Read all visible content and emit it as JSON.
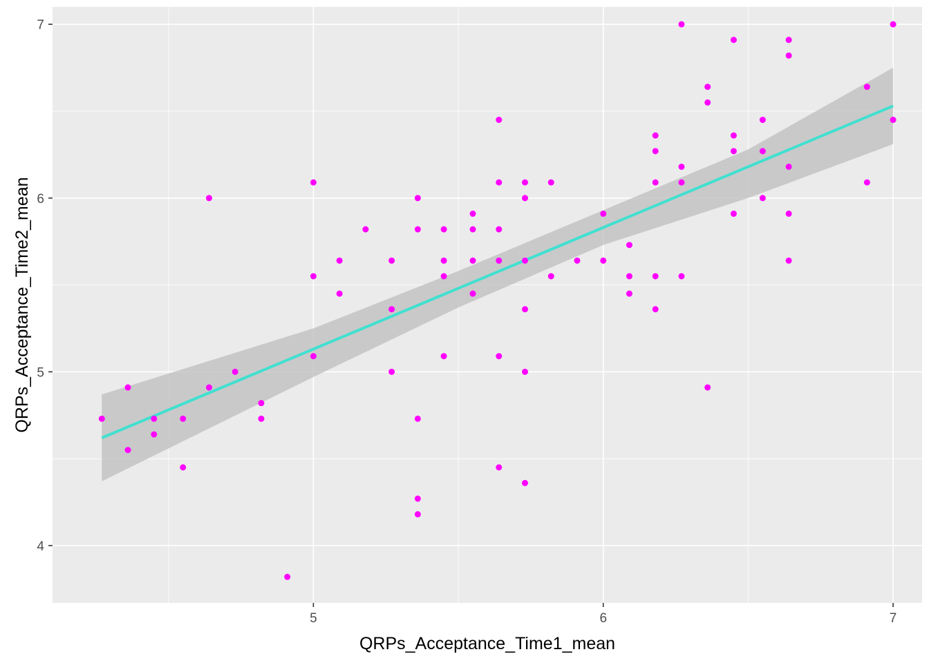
{
  "chart_data": {
    "type": "scatter",
    "title": "",
    "xlabel": "QRPs_Acceptance_Time1_mean",
    "ylabel": "QRPs_Acceptance_Time2_mean",
    "xlim": [
      4.1,
      7.1
    ],
    "ylim": [
      3.67,
      7.1
    ],
    "x_ticks": [
      5,
      6,
      7
    ],
    "x_tick_labels": [
      "5",
      "6",
      "7"
    ],
    "y_ticks": [
      4,
      5,
      6,
      7
    ],
    "y_tick_labels": [
      "4",
      "5",
      "6",
      "7"
    ],
    "grid": true,
    "legend": "none",
    "colors": {
      "panel_background": "#ebebeb",
      "grid": "#ffffff",
      "points": "#ff00ff",
      "fit_line": "#40e0d0",
      "confidence_band": "#bdbdbd"
    },
    "fit_line": {
      "x": [
        4.27,
        7.0
      ],
      "y": [
        4.62,
        6.53
      ]
    },
    "confidence_band": {
      "x": [
        4.27,
        5.0,
        5.5,
        6.0,
        6.5,
        7.0
      ],
      "lower": [
        4.37,
        4.97,
        5.37,
        5.73,
        6.0,
        6.31
      ],
      "upper": [
        4.87,
        5.25,
        5.58,
        5.93,
        6.28,
        6.75
      ]
    },
    "points": [
      {
        "x": 4.27,
        "y": 4.73
      },
      {
        "x": 4.36,
        "y": 4.91
      },
      {
        "x": 4.36,
        "y": 4.55
      },
      {
        "x": 4.45,
        "y": 4.73
      },
      {
        "x": 4.45,
        "y": 4.64
      },
      {
        "x": 4.55,
        "y": 4.73
      },
      {
        "x": 4.55,
        "y": 4.45
      },
      {
        "x": 4.64,
        "y": 6.0
      },
      {
        "x": 4.64,
        "y": 4.91
      },
      {
        "x": 4.73,
        "y": 5.0
      },
      {
        "x": 4.82,
        "y": 4.82
      },
      {
        "x": 4.82,
        "y": 4.73
      },
      {
        "x": 4.91,
        "y": 3.82
      },
      {
        "x": 5.0,
        "y": 6.09
      },
      {
        "x": 5.0,
        "y": 5.55
      },
      {
        "x": 5.0,
        "y": 5.09
      },
      {
        "x": 5.09,
        "y": 5.64
      },
      {
        "x": 5.09,
        "y": 5.45
      },
      {
        "x": 5.18,
        "y": 5.82
      },
      {
        "x": 5.27,
        "y": 5.64
      },
      {
        "x": 5.27,
        "y": 5.36
      },
      {
        "x": 5.27,
        "y": 5.0
      },
      {
        "x": 5.36,
        "y": 6.0
      },
      {
        "x": 5.36,
        "y": 5.82
      },
      {
        "x": 5.36,
        "y": 4.73
      },
      {
        "x": 5.36,
        "y": 4.27
      },
      {
        "x": 5.36,
        "y": 4.18
      },
      {
        "x": 5.45,
        "y": 5.82
      },
      {
        "x": 5.45,
        "y": 5.64
      },
      {
        "x": 5.45,
        "y": 5.55
      },
      {
        "x": 5.45,
        "y": 5.09
      },
      {
        "x": 5.55,
        "y": 5.91
      },
      {
        "x": 5.55,
        "y": 5.82
      },
      {
        "x": 5.55,
        "y": 5.64
      },
      {
        "x": 5.55,
        "y": 5.45
      },
      {
        "x": 5.64,
        "y": 6.45
      },
      {
        "x": 5.64,
        "y": 6.09
      },
      {
        "x": 5.64,
        "y": 5.82
      },
      {
        "x": 5.64,
        "y": 5.64
      },
      {
        "x": 5.64,
        "y": 5.09
      },
      {
        "x": 5.64,
        "y": 4.45
      },
      {
        "x": 5.73,
        "y": 6.09
      },
      {
        "x": 5.73,
        "y": 6.0
      },
      {
        "x": 5.73,
        "y": 5.64
      },
      {
        "x": 5.73,
        "y": 5.36
      },
      {
        "x": 5.73,
        "y": 5.0
      },
      {
        "x": 5.73,
        "y": 4.36
      },
      {
        "x": 5.82,
        "y": 6.09
      },
      {
        "x": 5.82,
        "y": 5.55
      },
      {
        "x": 5.91,
        "y": 5.64
      },
      {
        "x": 6.0,
        "y": 5.91
      },
      {
        "x": 6.0,
        "y": 5.64
      },
      {
        "x": 6.09,
        "y": 5.73
      },
      {
        "x": 6.09,
        "y": 5.55
      },
      {
        "x": 6.09,
        "y": 5.45
      },
      {
        "x": 6.18,
        "y": 6.36
      },
      {
        "x": 6.18,
        "y": 6.27
      },
      {
        "x": 6.18,
        "y": 6.09
      },
      {
        "x": 6.18,
        "y": 5.55
      },
      {
        "x": 6.18,
        "y": 5.36
      },
      {
        "x": 6.27,
        "y": 7.0
      },
      {
        "x": 6.27,
        "y": 6.18
      },
      {
        "x": 6.27,
        "y": 6.09
      },
      {
        "x": 6.27,
        "y": 5.55
      },
      {
        "x": 6.36,
        "y": 6.64
      },
      {
        "x": 6.36,
        "y": 6.55
      },
      {
        "x": 6.36,
        "y": 4.91
      },
      {
        "x": 6.45,
        "y": 6.91
      },
      {
        "x": 6.45,
        "y": 6.36
      },
      {
        "x": 6.45,
        "y": 6.27
      },
      {
        "x": 6.45,
        "y": 5.91
      },
      {
        "x": 6.55,
        "y": 6.45
      },
      {
        "x": 6.55,
        "y": 6.27
      },
      {
        "x": 6.55,
        "y": 6.0
      },
      {
        "x": 6.64,
        "y": 6.91
      },
      {
        "x": 6.64,
        "y": 6.82
      },
      {
        "x": 6.64,
        "y": 6.18
      },
      {
        "x": 6.64,
        "y": 5.91
      },
      {
        "x": 6.64,
        "y": 5.64
      },
      {
        "x": 6.91,
        "y": 6.64
      },
      {
        "x": 6.91,
        "y": 6.09
      },
      {
        "x": 7.0,
        "y": 7.0
      },
      {
        "x": 7.0,
        "y": 6.45
      }
    ]
  }
}
